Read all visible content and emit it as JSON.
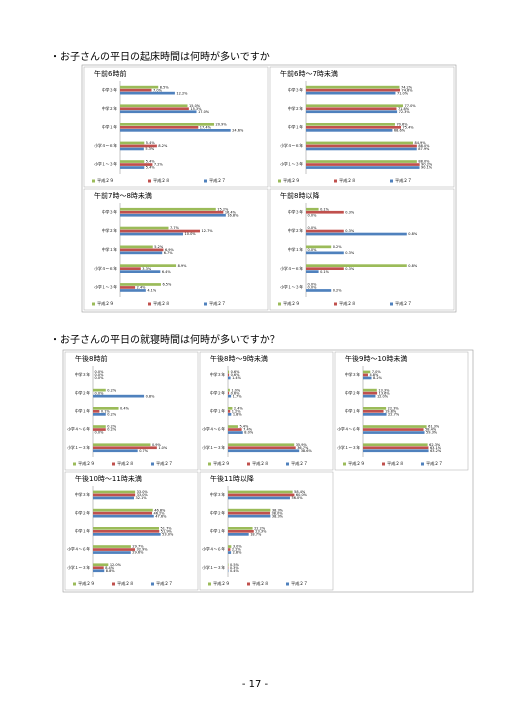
{
  "sections": [
    {
      "heading": "・お子さんの平日の起床時間は何時が多いですか"
    },
    {
      "heading": "・お子さんの平日の就寝時間は何時が多いですか？"
    }
  ],
  "page_number": "- 17 -",
  "chart_data": [
    {
      "type": "bar",
      "title": "午前6時前",
      "categories": [
        "中学３年",
        "中学２年",
        "中学１年",
        "小学４～６年",
        "小学１～３年"
      ],
      "xlim": [
        0,
        28
      ],
      "series": [
        {
          "name": "平成２９",
          "color": "#9bbb59",
          "values": [
            8.5,
            15.0,
            20.9,
            5.4,
            5.4
          ],
          "value_labels": [
            "8.5%",
            "15.0%",
            "20.9%",
            "5.4%",
            "5.4%"
          ]
        },
        {
          "name": "平成２８",
          "color": "#c0504d",
          "values": [
            7.0,
            15.3,
            17.4,
            8.2,
            7.2
          ],
          "value_labels": [
            "7.0%",
            "15.3%",
            "17.4%",
            "8.2%",
            "7.2%"
          ]
        },
        {
          "name": "平成２７",
          "color": "#4f81bd",
          "values": [
            12.2,
            17.0,
            24.6,
            5.3,
            5.4
          ],
          "value_labels": [
            "12.2%",
            "17.0%",
            "24.6%",
            "5.3%",
            "5.4%"
          ]
        }
      ]
    },
    {
      "type": "bar",
      "title": "午前6時～7時未満",
      "categories": [
        "中学３年",
        "中学２年",
        "中学１年",
        "小学４～６年",
        "小学１～３年"
      ],
      "xlim": [
        0,
        100
      ],
      "series": [
        {
          "name": "平成２９",
          "color": "#9bbb59",
          "values": [
            74.2,
            77.0,
            70.6,
            84.9,
            88.0
          ],
          "value_labels": [
            "74.2%",
            "77.0%",
            "70.6%",
            "84.9%",
            "88.0%"
          ]
        },
        {
          "name": "平成２８",
          "color": "#c0504d",
          "values": [
            74.6,
            71.8,
            75.4,
            88.0,
            90.2
          ],
          "value_labels": [
            "74.6%",
            "71.8%",
            "75.4%",
            "88.0%",
            "90.2%"
          ]
        },
        {
          "name": "平成２７",
          "color": "#4f81bd",
          "values": [
            71.0,
            72.3,
            68.6,
            87.9,
            90.1
          ],
          "value_labels": [
            "71.0%",
            "72.3%",
            "68.6%",
            "87.9%",
            "90.1%"
          ]
        }
      ]
    },
    {
      "type": "bar",
      "title": "午前7時～8時未満",
      "categories": [
        "中学３年",
        "中学２年",
        "中学１年",
        "小学４～６年",
        "小学１～３年"
      ],
      "xlim": [
        0,
        20
      ],
      "series": [
        {
          "name": "平成２９",
          "color": "#9bbb59",
          "values": [
            15.2,
            7.7,
            5.2,
            8.9,
            6.5
          ],
          "value_labels": [
            "15.2%",
            "7.7%",
            "5.2%",
            "8.9%",
            "6.5%"
          ]
        },
        {
          "name": "平成２８",
          "color": "#c0504d",
          "values": [
            16.4,
            12.7,
            6.9,
            3.3,
            2.4
          ],
          "value_labels": [
            "16.4%",
            "12.7%",
            "6.9%",
            "3.3%",
            "2.4%"
          ]
        },
        {
          "name": "平成２７",
          "color": "#4f81bd",
          "values": [
            16.8,
            10.0,
            6.7,
            6.4,
            4.1
          ],
          "value_labels": [
            "16.8%",
            "10.0%",
            "6.7%",
            "6.4%",
            "4.1%"
          ]
        }
      ]
    },
    {
      "type": "bar",
      "title": "午前8時以降",
      "categories": [
        "中学３年",
        "中学２年",
        "中学１年",
        "小学４～６年",
        "小学１～３年"
      ],
      "xlim": [
        0,
        1
      ],
      "series": [
        {
          "name": "平成２９",
          "color": "#9bbb59",
          "values": [
            0.1,
            0.0,
            0.2,
            0.8,
            0.0
          ],
          "value_labels": [
            "0.1%",
            "0.0%",
            "0.2%",
            "0.8%",
            "0.0%"
          ]
        },
        {
          "name": "平成２８",
          "color": "#c0504d",
          "values": [
            0.3,
            0.3,
            0.0,
            0.3,
            0.0
          ],
          "value_labels": [
            "0.3%",
            "0.3%",
            "0.0%",
            "0.3%",
            "0.0%"
          ]
        },
        {
          "name": "平成２７",
          "color": "#4f81bd",
          "values": [
            0.0,
            0.8,
            0.3,
            0.1,
            0.2
          ],
          "value_labels": [
            "0.0%",
            "0.8%",
            "0.3%",
            "0.1%",
            "0.2%"
          ]
        }
      ]
    },
    {
      "type": "bar",
      "title": "午後8時前",
      "categories": [
        "中学３年",
        "中学２年",
        "中学１年",
        "小学４～６年",
        "小学１～３年"
      ],
      "xlim": [
        0,
        1.3
      ],
      "series": [
        {
          "name": "平成２９",
          "color": "#9bbb59",
          "values": [
            0.0,
            0.2,
            0.4,
            0.2,
            0.9
          ],
          "value_labels": [
            "0.0%",
            "0.2%",
            "0.4%",
            "0.2%",
            "0.9%"
          ]
        },
        {
          "name": "平成２８",
          "color": "#c0504d",
          "values": [
            0.0,
            0.0,
            0.1,
            0.2,
            1.0
          ],
          "value_labels": [
            "0.0%",
            "0.0%",
            "0.1%",
            "0.2%",
            "1.0%"
          ]
        },
        {
          "name": "平成２７",
          "color": "#4f81bd",
          "values": [
            0.0,
            0.8,
            0.2,
            0.0,
            0.7
          ],
          "value_labels": [
            "0.0%",
            "0.8%",
            "0.2%",
            "0.0%",
            "0.7%"
          ]
        }
      ]
    },
    {
      "type": "bar",
      "title": "午後8時～9時未満",
      "categories": [
        "中学３年",
        "中学２年",
        "中学１年",
        "小学４～６年",
        "小学１～３年"
      ],
      "xlim": [
        0,
        45
      ],
      "series": [
        {
          "name": "平成２９",
          "color": "#9bbb59",
          "values": [
            0.6,
            1.0,
            2.4,
            5.4,
            35.9
          ],
          "value_labels": [
            "0.6%",
            "1.0%",
            "2.4%",
            "5.4%",
            "35.9%"
          ]
        },
        {
          "name": "平成２８",
          "color": "#c0504d",
          "values": [
            0.6,
            0.6,
            1.2,
            7.4,
            36.7
          ],
          "value_labels": [
            "0.6%",
            "0.6%",
            "1.2%",
            "7.4%",
            "36.7%"
          ]
        },
        {
          "name": "平成２７",
          "color": "#4f81bd",
          "values": [
            1.4,
            1.7,
            1.8,
            8.0,
            38.6
          ],
          "value_labels": [
            "1.4%",
            "1.7%",
            "1.8%",
            "8.0%",
            "38.6%"
          ]
        }
      ]
    },
    {
      "type": "bar",
      "title": "午後9時～10時未満",
      "categories": [
        "中学３年",
        "中学２年",
        "中学１年",
        "小学４～６年",
        "小学１～３年"
      ],
      "xlim": [
        0,
        80
      ],
      "series": [
        {
          "name": "平成２９",
          "color": "#9bbb59",
          "values": [
            7.0,
            13.3,
            22.3,
            61.3,
            62.3
          ],
          "value_labels": [
            "7.0%",
            "13.3%",
            "22.3%",
            "61.3%",
            "62.3%"
          ]
        },
        {
          "name": "平成２８",
          "color": "#c0504d",
          "values": [
            4.8,
            13.6,
            19.8,
            58.4,
            63.1
          ],
          "value_labels": [
            "4.8%",
            "13.6%",
            "19.8%",
            "58.4%",
            "63.1%"
          ]
        },
        {
          "name": "平成２７",
          "color": "#4f81bd",
          "values": [
            8.2,
            12.0,
            22.7,
            59.3,
            63.2
          ],
          "value_labels": [
            "8.2%",
            "12.0%",
            "22.7%",
            "59.3%",
            "63.2%"
          ]
        }
      ]
    },
    {
      "type": "bar",
      "title": "午後10時～11時未満",
      "categories": [
        "中学３年",
        "中学２年",
        "中学１年",
        "小学４～６年",
        "小学１～３年"
      ],
      "xlim": [
        0,
        65
      ],
      "series": [
        {
          "name": "平成２９",
          "color": "#9bbb59",
          "values": [
            33.0,
            46.8,
            51.7,
            29.7,
            12.0
          ],
          "value_labels": [
            "33.0%",
            "46.8%",
            "51.7%",
            "29.7%",
            "12.0%"
          ]
        },
        {
          "name": "平成２８",
          "color": "#c0504d",
          "values": [
            33.0,
            46.2,
            51.9,
            32.9,
            8.4
          ],
          "value_labels": [
            "33.0%",
            "46.2%",
            "51.9%",
            "32.9%",
            "8.4%"
          ]
        },
        {
          "name": "平成２７",
          "color": "#4f81bd",
          "values": [
            32.1,
            47.6,
            53.0,
            29.6,
            8.8
          ],
          "value_labels": [
            "32.1%",
            "47.6%",
            "53.0%",
            "29.6%",
            "8.8%"
          ]
        }
      ]
    },
    {
      "type": "bar",
      "title": "午後11時以降",
      "categories": [
        "中学３年",
        "中学２年",
        "中学１年",
        "小学４～６年",
        "小学１～３年"
      ],
      "xlim": [
        0,
        75
      ],
      "series": [
        {
          "name": "平成２９",
          "color": "#9bbb59",
          "values": [
            58.4,
            38.3,
            22.2,
            3.0,
            0.5
          ],
          "value_labels": [
            "58.4%",
            "38.3%",
            "22.2%",
            "3.0%",
            "0.5%"
          ]
        },
        {
          "name": "平成２８",
          "color": "#c0504d",
          "values": [
            60.0,
            38.0,
            23.3,
            2.2,
            0.3
          ],
          "value_labels": [
            "60.0%",
            "38.0%",
            "23.3%",
            "2.2%",
            "0.3%"
          ]
        },
        {
          "name": "平成２７",
          "color": "#4f81bd",
          "values": [
            56.0,
            38.3,
            18.7,
            2.8,
            0.4
          ],
          "value_labels": [
            "56.0%",
            "38.3%",
            "18.7%",
            "2.8%",
            "0.4%"
          ]
        }
      ]
    }
  ]
}
